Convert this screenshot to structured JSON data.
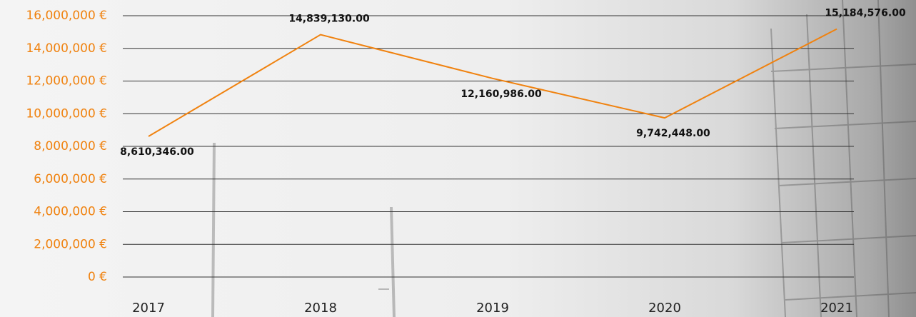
{
  "chart_data": {
    "type": "line",
    "categories": [
      "2017",
      "2018",
      "2019",
      "2020",
      "2021"
    ],
    "series": [
      {
        "color": "#f0820f",
        "values": [
          8610346,
          14839130,
          12160986,
          9742448,
          15184576
        ],
        "value_labels": [
          "8,610,346.00",
          "14,839,130.00",
          "12,160,986.00",
          "9,742,448.00",
          "15,184,576.00"
        ]
      }
    ],
    "ylim": [
      0,
      16000000
    ],
    "yticks": [
      {
        "value": 0,
        "label": "0 €"
      },
      {
        "value": 2000000,
        "label": "2,000,000 €"
      },
      {
        "value": 4000000,
        "label": "4,000,000 €"
      },
      {
        "value": 6000000,
        "label": "6,000,000 €"
      },
      {
        "value": 8000000,
        "label": "8,000,000 €"
      },
      {
        "value": 10000000,
        "label": "10,000,000 €"
      },
      {
        "value": 12000000,
        "label": "12,000,000 €"
      },
      {
        "value": 14000000,
        "label": "14,000,000 €"
      },
      {
        "value": 16000000,
        "label": "16,000,000 €"
      }
    ],
    "grid": true
  }
}
